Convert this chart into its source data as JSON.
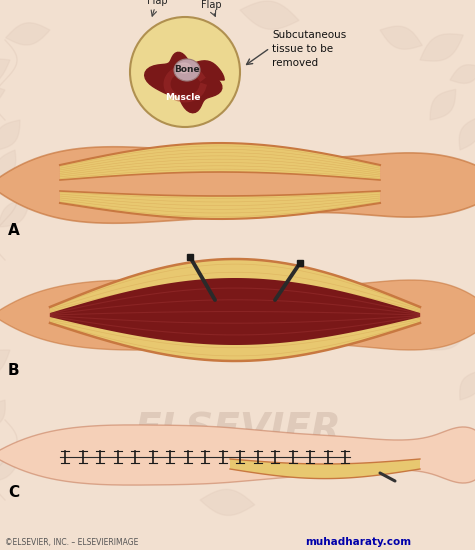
{
  "fig_bg": "#f2e0d0",
  "label_A": "A",
  "label_B": "B",
  "label_C": "C",
  "circle_label_flap_left": "Flap",
  "circle_label_flap_right": "Flap",
  "circle_label_bone": "Bone",
  "circle_label_muscle": "Muscle",
  "annotation_text": "Subcutaneous\ntissue to be\nremoved",
  "copyright_text": "©ELSEVIER, INC. – ELSEVIERIMAGE",
  "watermark_text": "muhadharaty.com",
  "skin_color": "#e8a878",
  "skin_light": "#f0c0a0",
  "skin_pale": "#f5d0b8",
  "flap_outer": "#c87840",
  "flap_inner": "#e8c870",
  "flap_mid": "#d4a050",
  "muscle_dark": "#7a1818",
  "muscle_reddish": "#b04040",
  "bone_color": "#c8a0a0",
  "circle_bg": "#ecd890",
  "leaf_color": "#d8c0b0",
  "elsevier_color": "#c8b0a0"
}
